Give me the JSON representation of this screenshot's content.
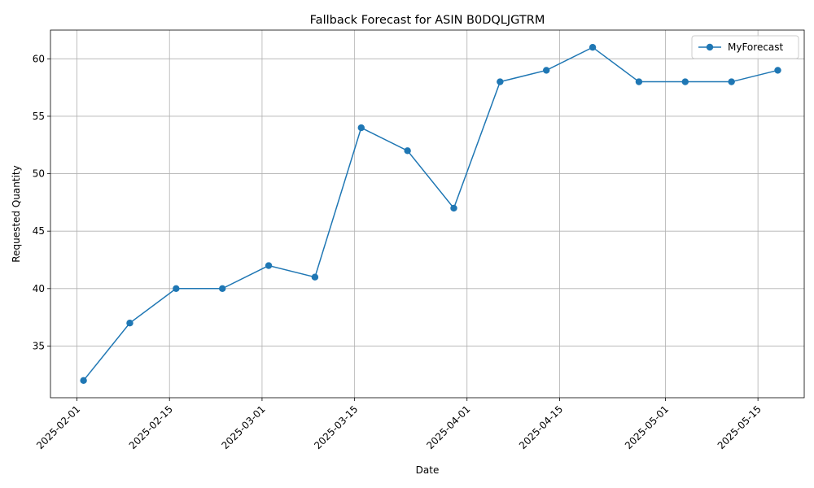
{
  "chart_data": {
    "type": "line",
    "title": "Fallback Forecast for ASIN B0DQLJGTRM",
    "xlabel": "Date",
    "ylabel": "Requested Quantity",
    "x_ticks": [
      "2025-02-01",
      "2025-02-15",
      "2025-03-01",
      "2025-03-15",
      "2025-04-01",
      "2025-04-15",
      "2025-05-01",
      "2025-05-15"
    ],
    "y_ticks": [
      35,
      40,
      45,
      50,
      55,
      60
    ],
    "xlim": [
      "2025-01-28",
      "2025-05-22"
    ],
    "ylim": [
      30.5,
      62.5
    ],
    "grid": true,
    "legend_position": "top-right",
    "series": [
      {
        "name": "MyForecast",
        "color": "#1f77b4",
        "marker": "circle",
        "x": [
          "2025-02-02",
          "2025-02-09",
          "2025-02-16",
          "2025-02-23",
          "2025-03-02",
          "2025-03-09",
          "2025-03-16",
          "2025-03-23",
          "2025-03-30",
          "2025-04-06",
          "2025-04-13",
          "2025-04-20",
          "2025-04-27",
          "2025-05-04",
          "2025-05-11",
          "2025-05-18"
        ],
        "values": [
          32,
          37,
          40,
          40,
          42,
          41,
          54,
          52,
          47,
          58,
          59,
          61,
          58,
          58,
          58,
          59
        ]
      }
    ]
  }
}
